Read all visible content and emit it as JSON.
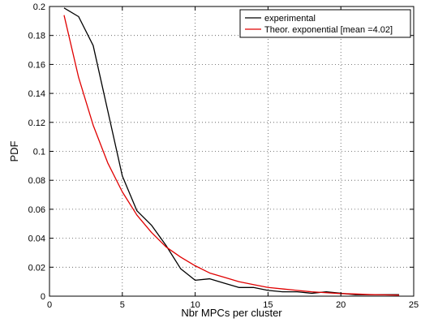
{
  "chart_data": {
    "type": "line",
    "xlabel": "Nbr MPCs per cluster",
    "ylabel": "PDF",
    "xlim": [
      0,
      25
    ],
    "ylim": [
      0,
      0.2
    ],
    "grid": true,
    "legend_position": "top-right",
    "xticks": [
      "0",
      "5",
      "10",
      "15",
      "20",
      "25"
    ],
    "yticks": [
      "0",
      "0.02",
      "0.04",
      "0.06",
      "0.08",
      "0.1",
      "0.12",
      "0.14",
      "0.16",
      "0.18",
      "0.2"
    ],
    "series": [
      {
        "name": "experimental",
        "color": "#000000",
        "x": [
          1,
          2,
          3,
          4,
          5,
          6,
          7,
          8,
          9,
          10,
          11,
          12,
          13,
          14,
          15,
          16,
          17,
          18,
          19,
          20,
          21,
          22,
          23,
          24
        ],
        "y": [
          0.199,
          0.193,
          0.173,
          0.128,
          0.083,
          0.059,
          0.049,
          0.035,
          0.019,
          0.011,
          0.012,
          0.009,
          0.006,
          0.006,
          0.004,
          0.003,
          0.003,
          0.002,
          0.003,
          0.002,
          0.001,
          0.001,
          0.001,
          0.001
        ]
      },
      {
        "name": "Theor. exponential [mean =4.02]",
        "color": "#e00000",
        "x": [
          1,
          2,
          3,
          4,
          5,
          6,
          7,
          8,
          9,
          10,
          11,
          12,
          13,
          14,
          15,
          16,
          17,
          18,
          19,
          20,
          21,
          22,
          23,
          24
        ],
        "y": [
          0.194,
          0.151,
          0.118,
          0.092,
          0.072,
          0.056,
          0.044,
          0.034,
          0.027,
          0.021,
          0.016,
          0.013,
          0.01,
          0.008,
          0.006,
          0.005,
          0.004,
          0.003,
          0.0024,
          0.0018,
          0.0015,
          0.0011,
          0.0009,
          0.0007
        ]
      }
    ]
  }
}
